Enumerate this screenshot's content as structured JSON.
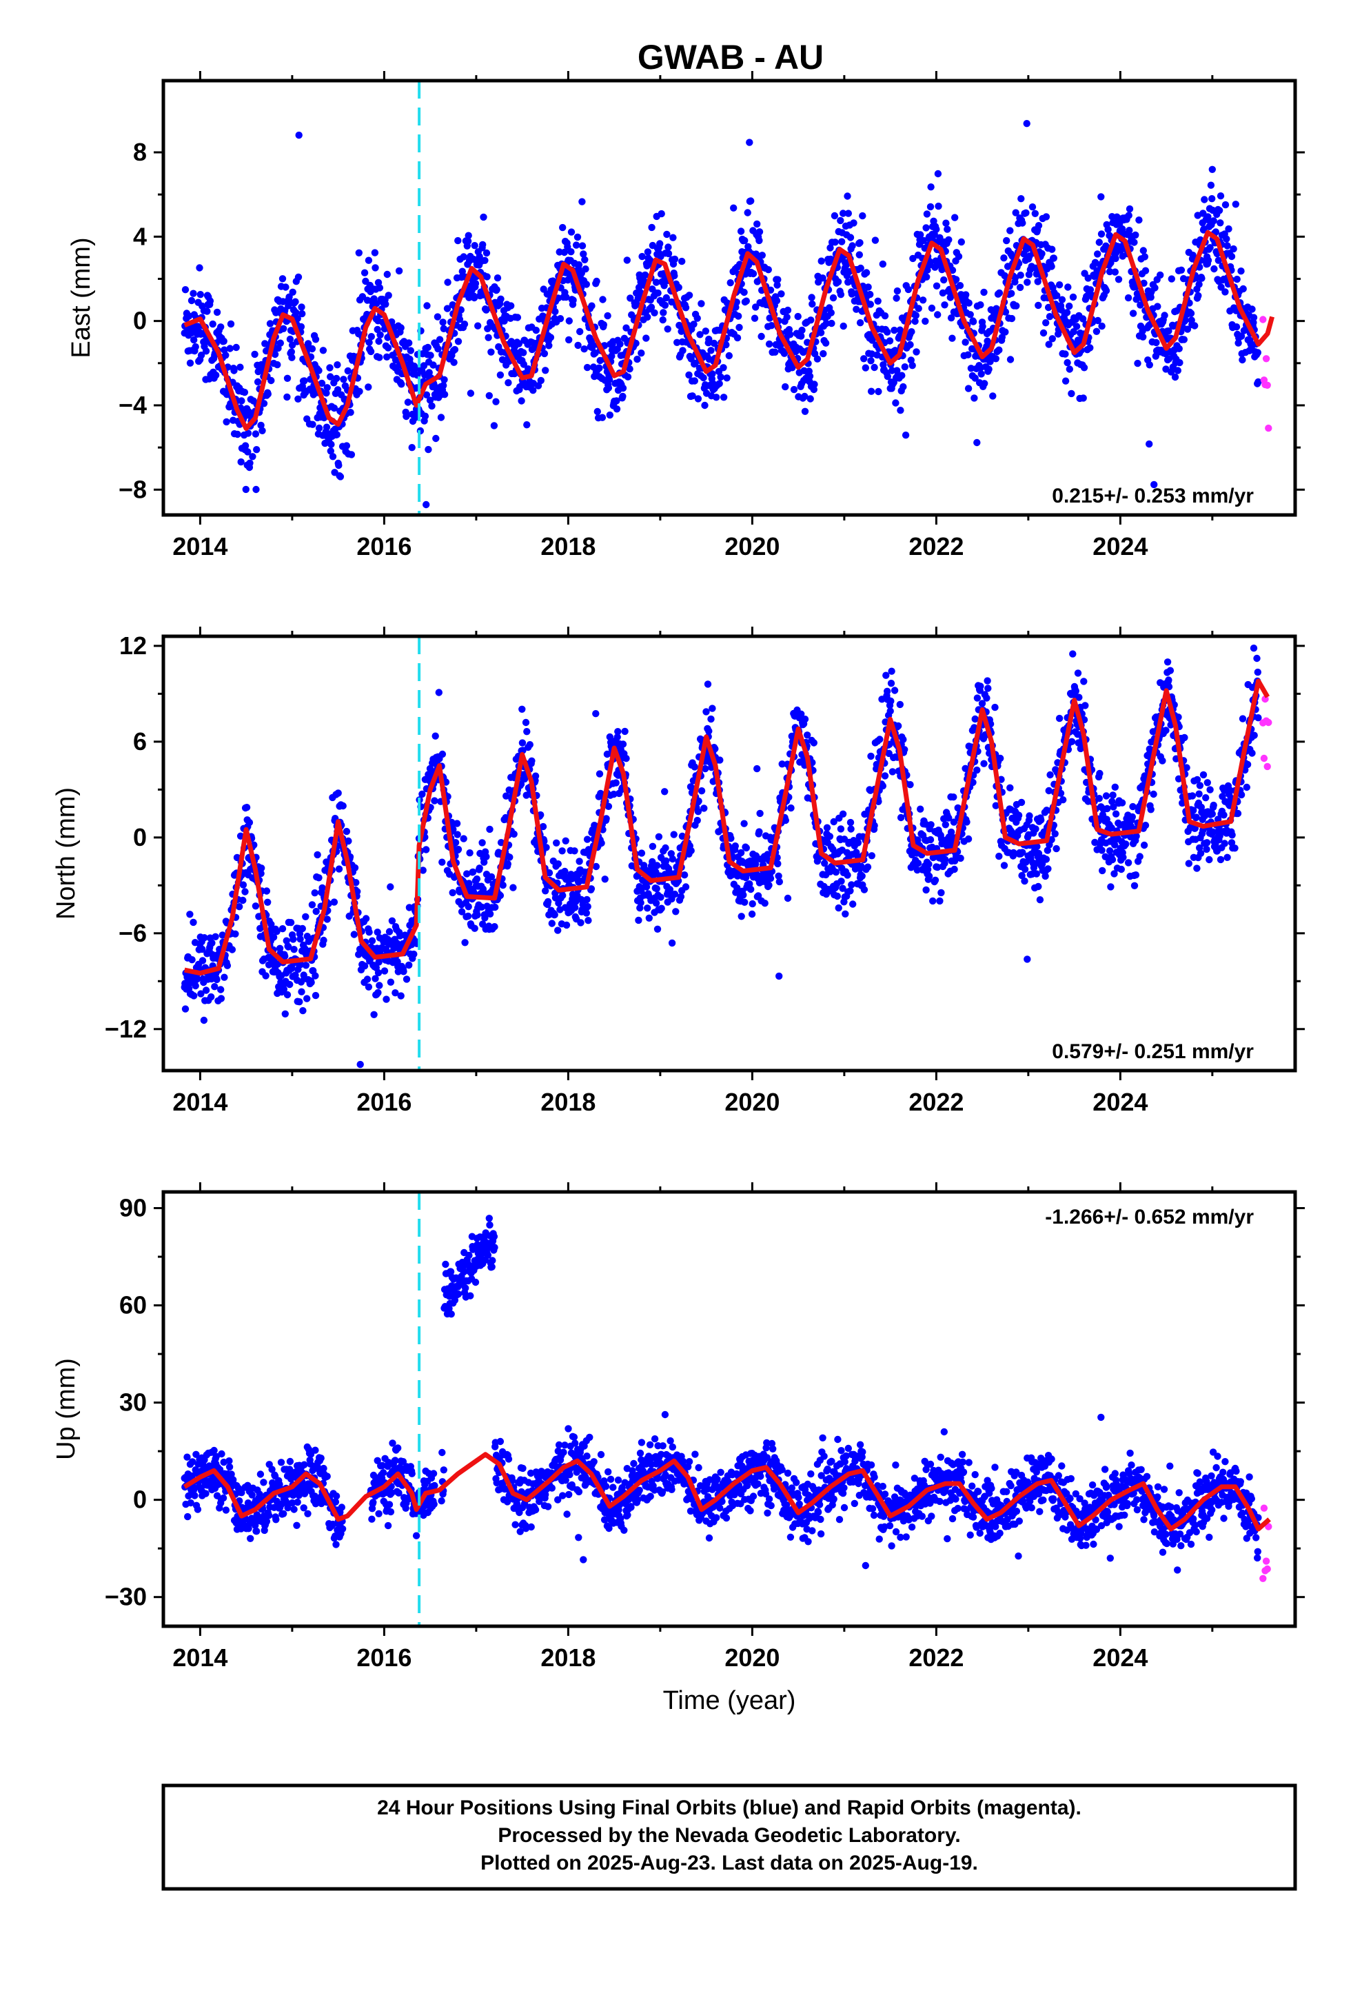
{
  "title": "GWAB - AU",
  "colors": {
    "final": "#0000ff",
    "rapid": "#ff33ff",
    "model": "#ee1111",
    "event": "#22ddee"
  },
  "footer": [
    "24 Hour Positions Using Final Orbits (blue) and Rapid Orbits (magenta).",
    "Processed by the Nevada Geodetic Laboratory.",
    "Plotted on 2025-Aug-23. Last data on 2025-Aug-19."
  ],
  "chart_data": [
    {
      "type": "scatter",
      "ylabel": "East (mm)",
      "xlabel": "",
      "xlim": [
        2013.6,
        2025.9
      ],
      "ylim": [
        -9.2,
        11.4
      ],
      "xticks": [
        2014,
        2016,
        2018,
        2020,
        2022,
        2024
      ],
      "xtick_labels": [
        "2014",
        "2016",
        "2018",
        "2020",
        "2022",
        "2024"
      ],
      "yticks": [
        -8,
        -4,
        0,
        4,
        8
      ],
      "ytick_labels": [
        "−8",
        "−4",
        "0",
        "4",
        "8"
      ],
      "rate": "0.215+/- 0.253 mm/yr",
      "rate_pos": "bottom-right",
      "event_x": 2016.38,
      "series": [
        {
          "role": "final",
          "x_start": 2013.83,
          "x_end": 2025.5
        },
        {
          "role": "rapid",
          "x_start": 2025.55,
          "x_end": 2025.62
        }
      ],
      "model": [
        [
          2013.83,
          -0.2
        ],
        [
          2014.0,
          0.1
        ],
        [
          2014.2,
          -1.5
        ],
        [
          2014.4,
          -4.2
        ],
        [
          2014.5,
          -5.1
        ],
        [
          2014.6,
          -4.6
        ],
        [
          2014.8,
          -0.8
        ],
        [
          2014.9,
          0.3
        ],
        [
          2015.0,
          0.1
        ],
        [
          2015.2,
          -2.2
        ],
        [
          2015.4,
          -4.6
        ],
        [
          2015.5,
          -4.9
        ],
        [
          2015.6,
          -4.0
        ],
        [
          2015.8,
          -0.3
        ],
        [
          2015.9,
          0.6
        ],
        [
          2016.0,
          0.3
        ],
        [
          2016.2,
          -2.0
        ],
        [
          2016.35,
          -4.0
        ],
        [
          2016.45,
          -3.0
        ],
        [
          2016.6,
          -2.6
        ],
        [
          2016.8,
          0.8
        ],
        [
          2016.95,
          2.5
        ],
        [
          2017.05,
          2.1
        ],
        [
          2017.3,
          -1.0
        ],
        [
          2017.5,
          -2.7
        ],
        [
          2017.6,
          -2.6
        ],
        [
          2017.8,
          0.5
        ],
        [
          2017.95,
          2.7
        ],
        [
          2018.05,
          2.4
        ],
        [
          2018.3,
          -0.8
        ],
        [
          2018.5,
          -2.6
        ],
        [
          2018.6,
          -2.4
        ],
        [
          2018.8,
          0.8
        ],
        [
          2018.95,
          2.9
        ],
        [
          2019.05,
          2.7
        ],
        [
          2019.3,
          -0.6
        ],
        [
          2019.5,
          -2.4
        ],
        [
          2019.6,
          -2.1
        ],
        [
          2019.8,
          1.2
        ],
        [
          2019.95,
          3.2
        ],
        [
          2020.05,
          2.8
        ],
        [
          2020.3,
          -0.6
        ],
        [
          2020.5,
          -2.2
        ],
        [
          2020.6,
          -1.8
        ],
        [
          2020.8,
          1.5
        ],
        [
          2020.95,
          3.4
        ],
        [
          2021.05,
          3.1
        ],
        [
          2021.3,
          -0.3
        ],
        [
          2021.5,
          -2.0
        ],
        [
          2021.6,
          -1.6
        ],
        [
          2021.8,
          1.9
        ],
        [
          2021.95,
          3.7
        ],
        [
          2022.05,
          3.4
        ],
        [
          2022.3,
          0.0
        ],
        [
          2022.5,
          -1.7
        ],
        [
          2022.6,
          -1.3
        ],
        [
          2022.8,
          2.1
        ],
        [
          2022.95,
          3.9
        ],
        [
          2023.05,
          3.6
        ],
        [
          2023.3,
          0.3
        ],
        [
          2023.5,
          -1.5
        ],
        [
          2023.6,
          -1.1
        ],
        [
          2023.8,
          2.3
        ],
        [
          2023.95,
          4.1
        ],
        [
          2024.05,
          3.8
        ],
        [
          2024.3,
          0.5
        ],
        [
          2024.5,
          -1.3
        ],
        [
          2024.6,
          -0.8
        ],
        [
          2024.8,
          2.5
        ],
        [
          2024.95,
          4.2
        ],
        [
          2025.05,
          3.9
        ],
        [
          2025.3,
          0.6
        ],
        [
          2025.5,
          -1.1
        ],
        [
          2025.6,
          -0.6
        ],
        [
          2025.65,
          0.2
        ]
      ]
    },
    {
      "type": "scatter",
      "ylabel": "North (mm)",
      "xlabel": "",
      "xlim": [
        2013.6,
        2025.9
      ],
      "ylim": [
        -14.6,
        12.6
      ],
      "xticks": [
        2014,
        2016,
        2018,
        2020,
        2022,
        2024
      ],
      "xtick_labels": [
        "2014",
        "2016",
        "2018",
        "2020",
        "2022",
        "2024"
      ],
      "yticks": [
        -12,
        -6,
        0,
        6,
        12
      ],
      "ytick_labels": [
        "−12",
        "−6",
        "0",
        "6",
        "12"
      ],
      "rate": "0.579+/- 0.251 mm/yr",
      "rate_pos": "bottom-right",
      "event_x": 2016.38,
      "series": [
        {
          "role": "final",
          "x_start": 2013.83,
          "x_end": 2025.5
        },
        {
          "role": "rapid",
          "x_start": 2025.55,
          "x_end": 2025.62
        }
      ],
      "model": [
        [
          2013.83,
          -8.3
        ],
        [
          2014.0,
          -8.5
        ],
        [
          2014.2,
          -8.2
        ],
        [
          2014.35,
          -5.0
        ],
        [
          2014.5,
          0.5
        ],
        [
          2014.6,
          -2.0
        ],
        [
          2014.75,
          -7.0
        ],
        [
          2014.9,
          -7.8
        ],
        [
          2015.2,
          -7.6
        ],
        [
          2015.35,
          -4.5
        ],
        [
          2015.5,
          1.0
        ],
        [
          2015.6,
          -1.5
        ],
        [
          2015.75,
          -6.5
        ],
        [
          2015.9,
          -7.5
        ],
        [
          2016.2,
          -7.3
        ],
        [
          2016.35,
          -5.5
        ],
        [
          2016.38,
          -0.5
        ],
        [
          2016.5,
          3.0
        ],
        [
          2016.6,
          4.5
        ],
        [
          2016.75,
          -1.5
        ],
        [
          2016.9,
          -3.7
        ],
        [
          2017.2,
          -3.8
        ],
        [
          2017.35,
          0.5
        ],
        [
          2017.5,
          5.2
        ],
        [
          2017.6,
          3.5
        ],
        [
          2017.75,
          -2.5
        ],
        [
          2017.9,
          -3.3
        ],
        [
          2018.2,
          -3.1
        ],
        [
          2018.35,
          1.0
        ],
        [
          2018.5,
          5.6
        ],
        [
          2018.6,
          4.0
        ],
        [
          2018.75,
          -2.0
        ],
        [
          2018.9,
          -2.7
        ],
        [
          2019.2,
          -2.5
        ],
        [
          2019.35,
          1.8
        ],
        [
          2019.5,
          6.3
        ],
        [
          2019.6,
          4.5
        ],
        [
          2019.75,
          -1.5
        ],
        [
          2019.9,
          -2.1
        ],
        [
          2020.2,
          -1.9
        ],
        [
          2020.35,
          2.4
        ],
        [
          2020.5,
          6.8
        ],
        [
          2020.6,
          5.0
        ],
        [
          2020.75,
          -1.0
        ],
        [
          2020.9,
          -1.6
        ],
        [
          2021.2,
          -1.4
        ],
        [
          2021.35,
          3.0
        ],
        [
          2021.5,
          7.4
        ],
        [
          2021.6,
          5.5
        ],
        [
          2021.75,
          -0.5
        ],
        [
          2021.9,
          -1.0
        ],
        [
          2022.2,
          -0.8
        ],
        [
          2022.35,
          3.6
        ],
        [
          2022.5,
          8.0
        ],
        [
          2022.6,
          6.0
        ],
        [
          2022.75,
          0.0
        ],
        [
          2022.9,
          -0.4
        ],
        [
          2023.2,
          -0.2
        ],
        [
          2023.35,
          4.2
        ],
        [
          2023.5,
          8.6
        ],
        [
          2023.6,
          6.5
        ],
        [
          2023.75,
          0.5
        ],
        [
          2023.9,
          0.2
        ],
        [
          2024.2,
          0.4
        ],
        [
          2024.35,
          4.8
        ],
        [
          2024.5,
          9.2
        ],
        [
          2024.6,
          7.0
        ],
        [
          2024.75,
          1.0
        ],
        [
          2024.9,
          0.7
        ],
        [
          2025.2,
          1.0
        ],
        [
          2025.35,
          5.5
        ],
        [
          2025.5,
          9.8
        ],
        [
          2025.6,
          8.8
        ]
      ]
    },
    {
      "type": "scatter",
      "ylabel": "Up (mm)",
      "xlabel": "Time (year)",
      "xlim": [
        2013.6,
        2025.9
      ],
      "ylim": [
        -39,
        95
      ],
      "xticks": [
        2014,
        2016,
        2018,
        2020,
        2022,
        2024
      ],
      "xtick_labels": [
        "2014",
        "2016",
        "2018",
        "2020",
        "2022",
        "2024"
      ],
      "yticks": [
        -30,
        0,
        30,
        60,
        90
      ],
      "ytick_labels": [
        "−30",
        "0",
        "30",
        "60",
        "90"
      ],
      "rate": "-1.266+/- 0.652 mm/yr",
      "rate_pos": "top-right",
      "event_x": 2016.38,
      "series": [
        {
          "role": "final",
          "x_start": 2013.83,
          "x_end": 2025.5
        },
        {
          "role": "rapid",
          "x_start": 2025.55,
          "x_end": 2025.62
        }
      ],
      "model": [
        [
          2013.83,
          4
        ],
        [
          2014.0,
          7
        ],
        [
          2014.15,
          9
        ],
        [
          2014.3,
          4
        ],
        [
          2014.45,
          -5
        ],
        [
          2014.6,
          -3
        ],
        [
          2014.8,
          2
        ],
        [
          2015.0,
          4
        ],
        [
          2015.15,
          8
        ],
        [
          2015.3,
          5
        ],
        [
          2015.5,
          -6
        ],
        [
          2015.6,
          -5
        ],
        [
          2015.8,
          1
        ],
        [
          2016.0,
          4
        ],
        [
          2016.15,
          8
        ],
        [
          2016.3,
          2
        ],
        [
          2016.35,
          -3
        ],
        [
          2016.45,
          2
        ],
        [
          2016.6,
          3
        ],
        [
          2016.8,
          8
        ],
        [
          2016.95,
          11
        ],
        [
          2017.1,
          14
        ],
        [
          2017.25,
          11
        ],
        [
          2017.4,
          2
        ],
        [
          2017.55,
          0
        ],
        [
          2017.8,
          6
        ],
        [
          2017.95,
          10
        ],
        [
          2018.1,
          12
        ],
        [
          2018.25,
          8
        ],
        [
          2018.45,
          -2
        ],
        [
          2018.6,
          1
        ],
        [
          2018.8,
          6
        ],
        [
          2019.0,
          9
        ],
        [
          2019.15,
          12
        ],
        [
          2019.3,
          7
        ],
        [
          2019.45,
          -3
        ],
        [
          2019.6,
          0
        ],
        [
          2019.8,
          5
        ],
        [
          2020.0,
          9
        ],
        [
          2020.15,
          10
        ],
        [
          2020.3,
          5
        ],
        [
          2020.5,
          -4
        ],
        [
          2020.65,
          -1
        ],
        [
          2020.85,
          4
        ],
        [
          2021.05,
          8
        ],
        [
          2021.2,
          9
        ],
        [
          2021.35,
          2
        ],
        [
          2021.5,
          -5
        ],
        [
          2021.7,
          -2
        ],
        [
          2021.9,
          3
        ],
        [
          2022.1,
          5
        ],
        [
          2022.25,
          5
        ],
        [
          2022.4,
          -1
        ],
        [
          2022.55,
          -6
        ],
        [
          2022.7,
          -4
        ],
        [
          2022.9,
          1
        ],
        [
          2023.1,
          5
        ],
        [
          2023.25,
          6
        ],
        [
          2023.4,
          -1
        ],
        [
          2023.55,
          -8
        ],
        [
          2023.7,
          -5
        ],
        [
          2023.9,
          0
        ],
        [
          2024.1,
          3
        ],
        [
          2024.25,
          5
        ],
        [
          2024.4,
          -3
        ],
        [
          2024.55,
          -9
        ],
        [
          2024.7,
          -6
        ],
        [
          2024.9,
          0
        ],
        [
          2025.1,
          4
        ],
        [
          2025.25,
          4
        ],
        [
          2025.4,
          -3
        ],
        [
          2025.5,
          -9
        ],
        [
          2025.62,
          -6
        ]
      ]
    }
  ]
}
